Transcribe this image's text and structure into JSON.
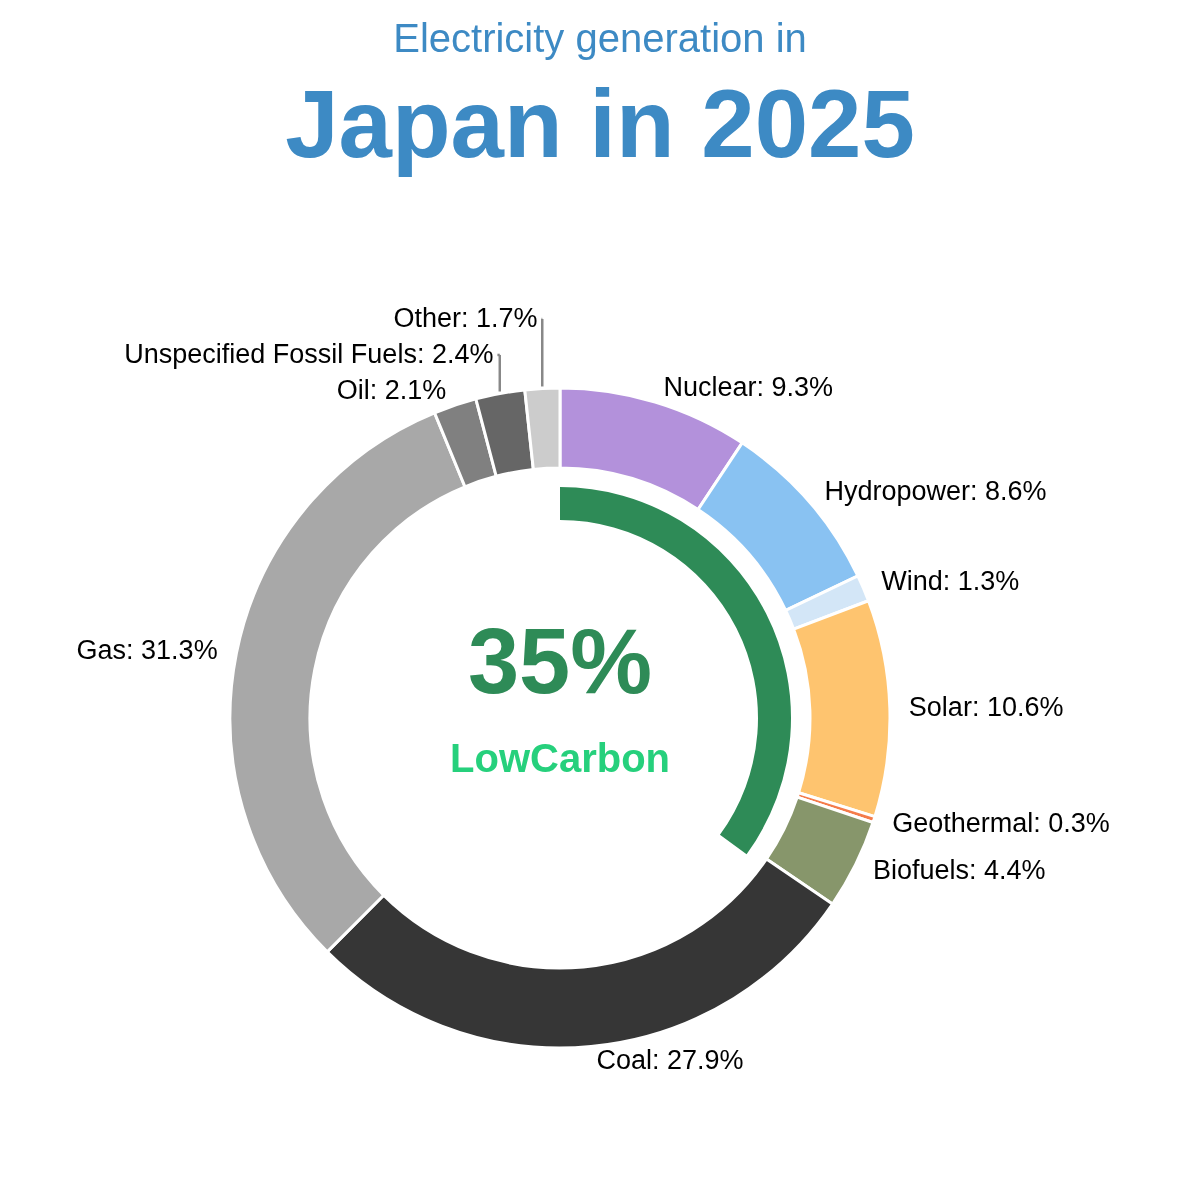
{
  "chart_data": {
    "type": "donut",
    "subtitle": "Electricity generation in",
    "title": "Japan in 2025",
    "categories": [
      "Nuclear",
      "Hydropower",
      "Wind",
      "Solar",
      "Geothermal",
      "Biofuels",
      "Coal",
      "Gas",
      "Oil",
      "Unspecified Fossil Fuels",
      "Other"
    ],
    "series": [
      {
        "values": [
          9.3,
          8.6,
          1.3,
          10.6,
          0.3,
          4.4,
          27.9,
          31.3,
          2.1,
          2.4,
          1.7
        ],
        "value_labels": [
          "9.3%",
          "8.6%",
          "1.3%",
          "10.6%",
          "0.3%",
          "4.4%",
          "27.9%",
          "31.3%",
          "2.1%",
          "2.4%",
          "1.7%"
        ],
        "colors": [
          "#b391db",
          "#89c2f2",
          "#d3e6f7",
          "#fec46f",
          "#f47c4b",
          "#87966b",
          "#363636",
          "#a8a8a8",
          "#808080",
          "#666666",
          "#cccccc"
        ]
      },
      {
        "name": "LowCarbon",
        "color": "#2e8b57",
        "values": [
          35,
          null,
          null,
          null,
          null,
          null,
          null,
          null,
          null,
          null,
          null
        ],
        "value_labels": [
          "35%",
          null,
          null,
          null,
          null,
          null,
          null,
          null,
          null,
          null,
          null
        ]
      }
    ]
  }
}
